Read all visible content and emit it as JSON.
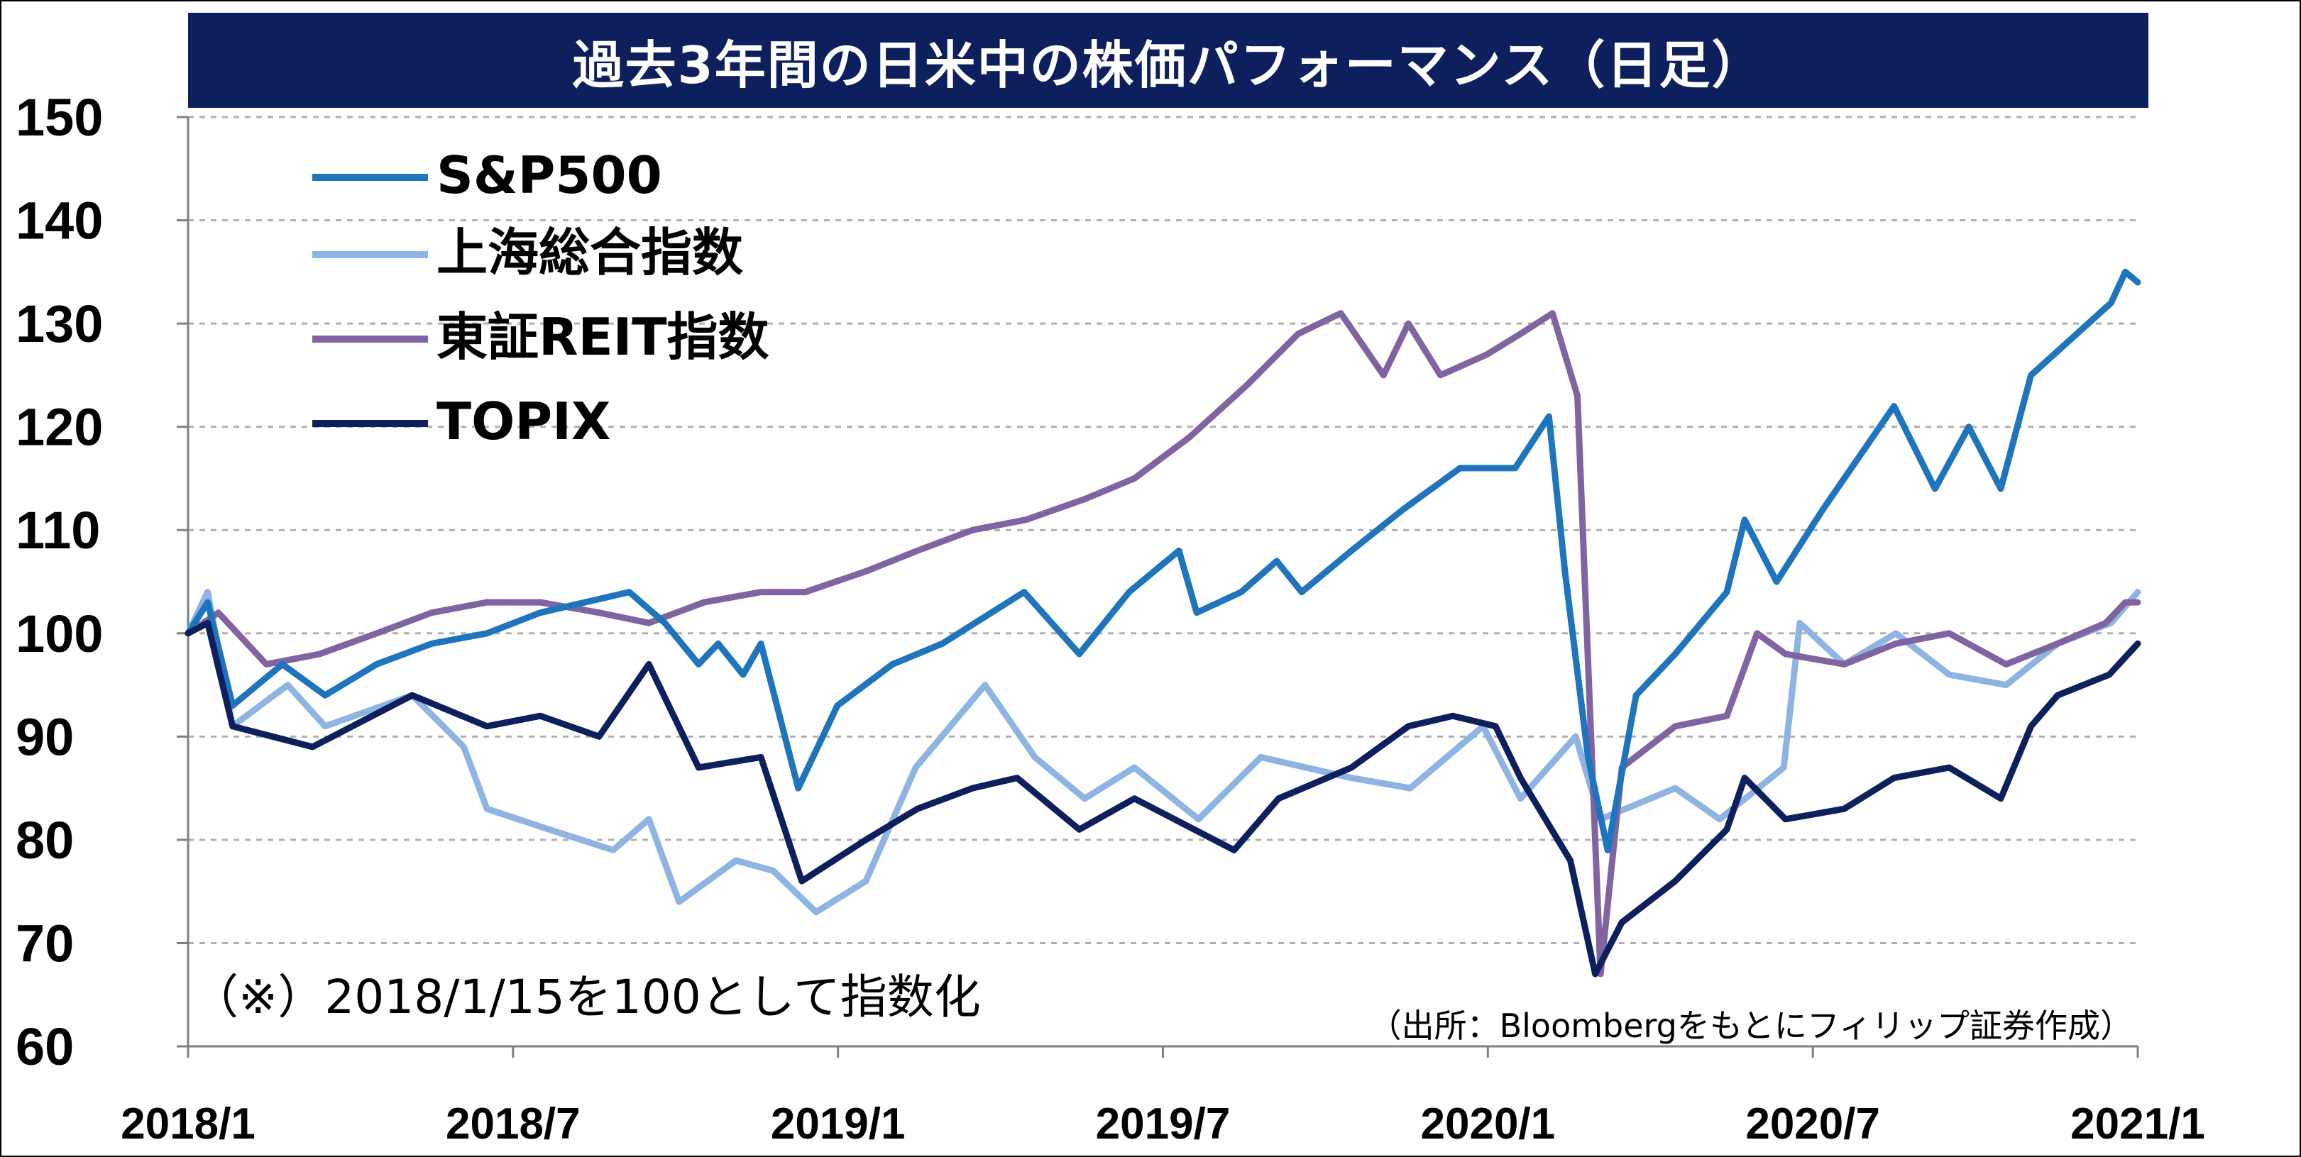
{
  "chart_data": {
    "type": "line",
    "title": "過去3年間の日米中の株価パフォーマンス（日足）",
    "ylim": [
      60,
      150
    ],
    "yticks": [
      60,
      70,
      80,
      90,
      100,
      110,
      120,
      130,
      140,
      150
    ],
    "x_ticks": [
      "2018/1",
      "2018/7",
      "2019/1",
      "2019/7",
      "2020/1",
      "2020/7",
      "2021/1"
    ],
    "x_range": [
      "2018/1/15",
      "2021/1/15"
    ],
    "grid": "horizontal-dashed",
    "legend_position": "top-left",
    "note": "（※）2018/1/15を100として指数化",
    "source": "（出所：Bloombergをもとにフィリップ証券作成）",
    "series": [
      {
        "name": "S&P500",
        "color": "#1f75bd",
        "points": [
          [
            "2018/1/15",
            100
          ],
          [
            "2018/1/26",
            103
          ],
          [
            "2018/2/9",
            93
          ],
          [
            "2018/3/9",
            97
          ],
          [
            "2018/4/2",
            94
          ],
          [
            "2018/5/1",
            97
          ],
          [
            "2018/6/1",
            99
          ],
          [
            "2018/7/2",
            100
          ],
          [
            "2018/8/1",
            102
          ],
          [
            "2018/9/20",
            104
          ],
          [
            "2018/10/10",
            101
          ],
          [
            "2018/10/29",
            97
          ],
          [
            "2018/11/9",
            99
          ],
          [
            "2018/11/23",
            96
          ],
          [
            "2018/12/3",
            99
          ],
          [
            "2018/12/24",
            85
          ],
          [
            "2019/1/15",
            93
          ],
          [
            "2019/2/15",
            97
          ],
          [
            "2019/3/15",
            99
          ],
          [
            "2019/4/30",
            104
          ],
          [
            "2019/5/31",
            98
          ],
          [
            "2019/6/28",
            104
          ],
          [
            "2019/7/26",
            108
          ],
          [
            "2019/8/5",
            102
          ],
          [
            "2019/8/30",
            104
          ],
          [
            "2019/9/19",
            107
          ],
          [
            "2019/10/3",
            104
          ],
          [
            "2019/10/31",
            108
          ],
          [
            "2019/11/29",
            112
          ],
          [
            "2019/12/31",
            116
          ],
          [
            "2020/1/31",
            116
          ],
          [
            "2020/2/19",
            121
          ],
          [
            "2020/2/28",
            106
          ],
          [
            "2020/3/12",
            88
          ],
          [
            "2020/3/23",
            79
          ],
          [
            "2020/4/8",
            94
          ],
          [
            "2020/4/30",
            98
          ],
          [
            "2020/5/29",
            104
          ],
          [
            "2020/6/8",
            111
          ],
          [
            "2020/6/26",
            105
          ],
          [
            "2020/7/22",
            112
          ],
          [
            "2020/8/31",
            122
          ],
          [
            "2020/9/23",
            114
          ],
          [
            "2020/10/12",
            120
          ],
          [
            "2020/10/30",
            114
          ],
          [
            "2020/11/16",
            125
          ],
          [
            "2020/12/31",
            132
          ],
          [
            "2021/1/8",
            135
          ],
          [
            "2021/1/15",
            134
          ]
        ]
      },
      {
        "name": "上海総合指数",
        "color": "#8db4e2",
        "points": [
          [
            "2018/1/15",
            100
          ],
          [
            "2018/1/26",
            104
          ],
          [
            "2018/2/9",
            91
          ],
          [
            "2018/3/12",
            95
          ],
          [
            "2018/4/2",
            91
          ],
          [
            "2018/5/21",
            94
          ],
          [
            "2018/6/19",
            89
          ],
          [
            "2018/7/2",
            83
          ],
          [
            "2018/8/6",
            81
          ],
          [
            "2018/9/11",
            79
          ],
          [
            "2018/10/1",
            82
          ],
          [
            "2018/10/18",
            74
          ],
          [
            "2018/11/19",
            78
          ],
          [
            "2018/12/10",
            77
          ],
          [
            "2019/1/3",
            73
          ],
          [
            "2019/1/31",
            76
          ],
          [
            "2019/2/28",
            87
          ],
          [
            "2019/4/8",
            95
          ],
          [
            "2019/5/6",
            88
          ],
          [
            "2019/6/3",
            84
          ],
          [
            "2019/7/1",
            87
          ],
          [
            "2019/8/6",
            82
          ],
          [
            "2019/9/10",
            88
          ],
          [
            "2019/10/31",
            86
          ],
          [
            "2019/12/3",
            85
          ],
          [
            "2020/1/13",
            91
          ],
          [
            "2020/2/3",
            84
          ],
          [
            "2020/3/5",
            90
          ],
          [
            "2020/3/19",
            82
          ],
          [
            "2020/4/30",
            85
          ],
          [
            "2020/5/25",
            82
          ],
          [
            "2020/6/30",
            87
          ],
          [
            "2020/7/9",
            101
          ],
          [
            "2020/8/3",
            97
          ],
          [
            "2020/9/1",
            100
          ],
          [
            "2020/10/1",
            96
          ],
          [
            "2020/11/2",
            95
          ],
          [
            "2020/12/1",
            99
          ],
          [
            "2020/12/31",
            101
          ],
          [
            "2021/1/15",
            104
          ]
        ]
      },
      {
        "name": "東証REIT指数",
        "color": "#8064a2",
        "points": [
          [
            "2018/1/15",
            100
          ],
          [
            "2018/2/1",
            102
          ],
          [
            "2018/2/28",
            97
          ],
          [
            "2018/3/30",
            98
          ],
          [
            "2018/5/1",
            100
          ],
          [
            "2018/6/1",
            102
          ],
          [
            "2018/7/2",
            103
          ],
          [
            "2018/8/1",
            103
          ],
          [
            "2018/9/3",
            102
          ],
          [
            "2018/10/1",
            101
          ],
          [
            "2018/11/1",
            103
          ],
          [
            "2018/12/3",
            104
          ],
          [
            "2018/12/28",
            104
          ],
          [
            "2019/1/31",
            106
          ],
          [
            "2019/3/1",
            108
          ],
          [
            "2019/4/1",
            110
          ],
          [
            "2019/5/1",
            111
          ],
          [
            "2019/6/3",
            113
          ],
          [
            "2019/7/1",
            115
          ],
          [
            "2019/8/1",
            119
          ],
          [
            "2019/9/2",
            124
          ],
          [
            "2019/10/1",
            129
          ],
          [
            "2019/10/25",
            131
          ],
          [
            "2019/11/18",
            125
          ],
          [
            "2019/12/2",
            130
          ],
          [
            "2019/12/20",
            125
          ],
          [
            "2020/1/15",
            127
          ],
          [
            "2020/2/3",
            129
          ],
          [
            "2020/2/21",
            131
          ],
          [
            "2020/3/6",
            123
          ],
          [
            "2020/3/19",
            67
          ],
          [
            "2020/3/31",
            87
          ],
          [
            "2020/4/30",
            91
          ],
          [
            "2020/5/29",
            92
          ],
          [
            "2020/6/15",
            100
          ],
          [
            "2020/7/1",
            98
          ],
          [
            "2020/8/3",
            97
          ],
          [
            "2020/9/1",
            99
          ],
          [
            "2020/10/1",
            100
          ],
          [
            "2020/11/2",
            97
          ],
          [
            "2020/12/1",
            99
          ],
          [
            "2020/12/28",
            101
          ],
          [
            "2021/1/8",
            103
          ],
          [
            "2021/1/15",
            103
          ]
        ]
      },
      {
        "name": "TOPIX",
        "color": "#0d1f5c",
        "points": [
          [
            "2018/1/15",
            100
          ],
          [
            "2018/1/26",
            101
          ],
          [
            "2018/2/9",
            91
          ],
          [
            "2018/3/26",
            89
          ],
          [
            "2018/5/21",
            94
          ],
          [
            "2018/7/2",
            91
          ],
          [
            "2018/8/1",
            92
          ],
          [
            "2018/9/3",
            90
          ],
          [
            "2018/10/1",
            97
          ],
          [
            "2018/10/29",
            87
          ],
          [
            "2018/12/3",
            88
          ],
          [
            "2018/12/26",
            76
          ],
          [
            "2019/1/31",
            80
          ],
          [
            "2019/3/1",
            83
          ],
          [
            "2019/4/1",
            85
          ],
          [
            "2019/4/26",
            86
          ],
          [
            "2019/5/31",
            81
          ],
          [
            "2019/7/1",
            84
          ],
          [
            "2019/8/26",
            79
          ],
          [
            "2019/9/20",
            84
          ],
          [
            "2019/10/31",
            87
          ],
          [
            "2019/12/2",
            91
          ],
          [
            "2019/12/27",
            92
          ],
          [
            "2020/1/20",
            91
          ],
          [
            "2020/2/3",
            86
          ],
          [
            "2020/3/2",
            78
          ],
          [
            "2020/3/16",
            67
          ],
          [
            "2020/3/31",
            72
          ],
          [
            "2020/4/30",
            76
          ],
          [
            "2020/5/29",
            81
          ],
          [
            "2020/6/8",
            86
          ],
          [
            "2020/7/1",
            82
          ],
          [
            "2020/8/3",
            83
          ],
          [
            "2020/8/31",
            86
          ],
          [
            "2020/10/1",
            87
          ],
          [
            "2020/10/30",
            84
          ],
          [
            "2020/11/16",
            91
          ],
          [
            "2020/12/1",
            94
          ],
          [
            "2020/12/30",
            96
          ],
          [
            "2021/1/15",
            99
          ]
        ]
      }
    ]
  }
}
